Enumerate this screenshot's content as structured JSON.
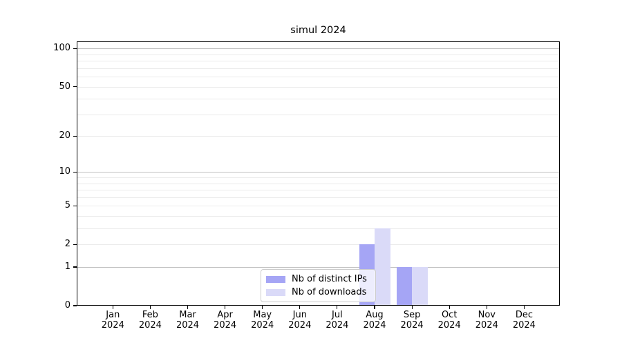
{
  "chart_data": {
    "type": "bar",
    "title": "simul 2024",
    "x": {
      "months": [
        "Jan",
        "Feb",
        "Mar",
        "Apr",
        "May",
        "Jun",
        "Jul",
        "Aug",
        "Sep",
        "Oct",
        "Nov",
        "Dec"
      ],
      "year": "2024"
    },
    "series": [
      {
        "name": "Nb of distinct IPs",
        "color": "#a5a5f5",
        "values": [
          0,
          0,
          0,
          0,
          0,
          0,
          0,
          2,
          1,
          0,
          0,
          0
        ]
      },
      {
        "name": "Nb of downloads",
        "color": "#dadaf8",
        "values": [
          0,
          0,
          0,
          0,
          0,
          0,
          0,
          3,
          1,
          0,
          0,
          0
        ]
      }
    ],
    "yscale": "log1p",
    "ylim": [
      0,
      114
    ],
    "yticks": [
      100,
      50,
      20,
      10,
      5,
      2,
      1,
      0
    ],
    "grid": {
      "major_values": [
        1,
        10,
        100
      ],
      "minor_values": [
        2,
        3,
        4,
        5,
        6,
        7,
        8,
        9,
        20,
        30,
        40,
        50,
        60,
        70,
        80,
        90
      ],
      "major_color": "#c0c0c0",
      "minor_color": "#ebebeb"
    },
    "legend_position": "lower center",
    "axis_color": "#000000",
    "background_color": "#ffffff"
  }
}
